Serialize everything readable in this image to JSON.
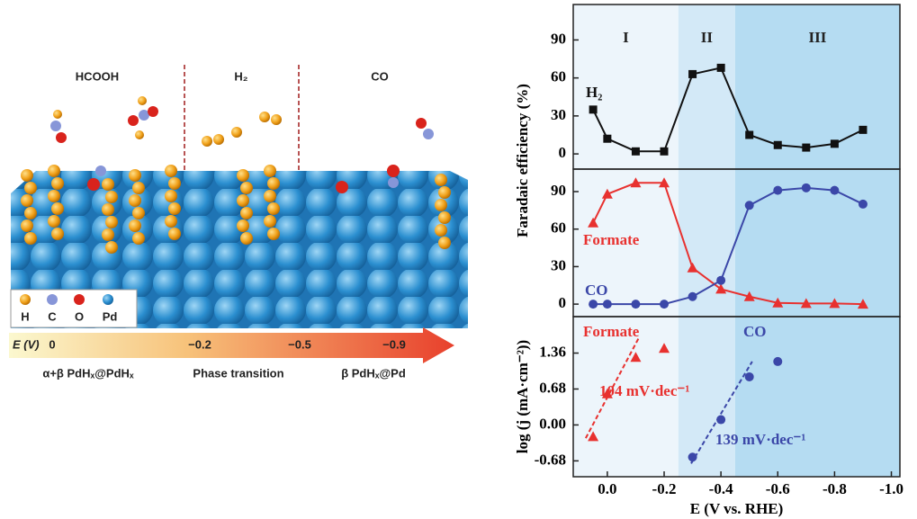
{
  "illustration": {
    "regions": [
      "HCOOH",
      "H₂",
      "CO"
    ],
    "legend": [
      "H",
      "C",
      "O",
      "Pd"
    ],
    "axis_label": "E (V)",
    "potentials": [
      "0",
      "−0.2",
      "−0.5",
      "−0.9"
    ],
    "phases": [
      "α+β PdHₓ@PdHₓ",
      "Phase transition",
      "β PdHₓ@Pd"
    ]
  },
  "chart_data": [
    {
      "type": "line",
      "y_label": "Faradaic efficiency (%)",
      "xlim": [
        0.12,
        -1.03
      ],
      "ylim": [
        -12,
        118
      ],
      "yticks": [
        0,
        30,
        60,
        90
      ],
      "regions": [
        {
          "label": "I",
          "range": [
            0.12,
            -0.25
          ],
          "color": "#edf5fb"
        },
        {
          "label": "II",
          "range": [
            -0.25,
            -0.45
          ],
          "color": "#d3e9f7"
        },
        {
          "label": "III",
          "range": [
            -0.45,
            -1.03
          ],
          "color": "#b5dcf2"
        }
      ],
      "x": [
        0.05,
        0,
        -0.1,
        -0.2,
        -0.3,
        -0.4,
        -0.5,
        -0.6,
        -0.7,
        -0.8,
        -0.9
      ],
      "series": [
        {
          "name": "H₂",
          "color": "#111111",
          "marker": "square",
          "values": [
            35,
            12,
            2,
            2,
            63,
            68,
            15,
            7,
            5,
            8,
            19
          ]
        }
      ]
    },
    {
      "type": "line",
      "xlim": [
        0.12,
        -1.03
      ],
      "ylim": [
        -10,
        108
      ],
      "yticks": [
        0,
        30,
        60,
        90
      ],
      "x": [
        0.05,
        0,
        -0.1,
        -0.2,
        -0.3,
        -0.4,
        -0.5,
        -0.6,
        -0.7,
        -0.8,
        -0.9
      ],
      "series": [
        {
          "name": "Formate",
          "color": "#e8312f",
          "marker": "triangle",
          "values": [
            65,
            88,
            97,
            97,
            29,
            12,
            6,
            1,
            0.5,
            0.5,
            0
          ]
        },
        {
          "name": "CO",
          "color": "#3b47a8",
          "marker": "circle",
          "values": [
            0,
            0,
            0,
            0,
            6,
            19,
            79,
            91,
            93,
            91,
            80
          ]
        }
      ]
    },
    {
      "type": "scatter",
      "y_label": "log (j (mA·cm⁻²))",
      "x_label": "E (V vs. RHE)",
      "xlim": [
        0.12,
        -1.03
      ],
      "ylim": [
        -0.98,
        2.05
      ],
      "yticks": [
        -0.68,
        {
          "value": 0,
          "label": "0.00"
        },
        0.68,
        1.36
      ],
      "xticks": [
        {
          "value": 0,
          "label": "0.0"
        },
        -0.2,
        -0.4,
        -0.6,
        -0.8,
        {
          "value": -1,
          "label": "-1.0"
        }
      ],
      "series": [
        {
          "name": "Formate",
          "color": "#e8312f",
          "marker": "triangle",
          "x": [
            0.05,
            0,
            -0.1,
            -0.2
          ],
          "values": [
            -0.22,
            0.59,
            1.28,
            1.45
          ],
          "slope_label": "104 mV·dec⁻¹",
          "fit": {
            "x": [
              0.076,
              -0.11
            ],
            "values": [
              -0.25,
              1.64
            ]
          }
        },
        {
          "name": "CO",
          "color": "#3b47a8",
          "marker": "circle",
          "x": [
            -0.3,
            -0.4,
            -0.5,
            -0.6
          ],
          "values": [
            -0.61,
            0.1,
            0.91,
            1.2
          ],
          "slope_label": "139 mV·dec⁻¹",
          "fit": {
            "x": [
              -0.295,
              -0.51
            ],
            "values": [
              -0.73,
              1.2
            ]
          }
        }
      ]
    }
  ]
}
